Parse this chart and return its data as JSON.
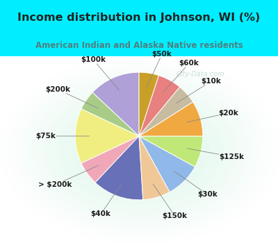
{
  "title": "Income distribution in Johnson, WI (%)",
  "subtitle": "American Indian and Alaska Native residents",
  "watermark": "City-Data.com",
  "labels": [
    "$100k",
    "$200k",
    "$75k",
    "> $200k",
    "$40k",
    "$150k",
    "$30k",
    "$125k",
    "$20k",
    "$10k",
    "$60k",
    "$50k"
  ],
  "values": [
    13,
    5,
    14,
    6,
    13,
    7,
    9,
    8,
    9,
    5,
    6,
    5
  ],
  "colors": [
    "#b0a0d8",
    "#a8cc88",
    "#f0ee80",
    "#f0a8b8",
    "#6870b8",
    "#f0c898",
    "#90b8e8",
    "#c0e878",
    "#f0a840",
    "#c8bca0",
    "#e88080",
    "#c8a028"
  ],
  "bg_top_color": "#00eeff",
  "chart_bg_color_topleft": "#c8f0e0",
  "chart_bg_color_center": "#e8f8f0",
  "title_color": "#222222",
  "subtitle_color": "#508080",
  "label_fontsize": 7.5,
  "startangle": 90
}
